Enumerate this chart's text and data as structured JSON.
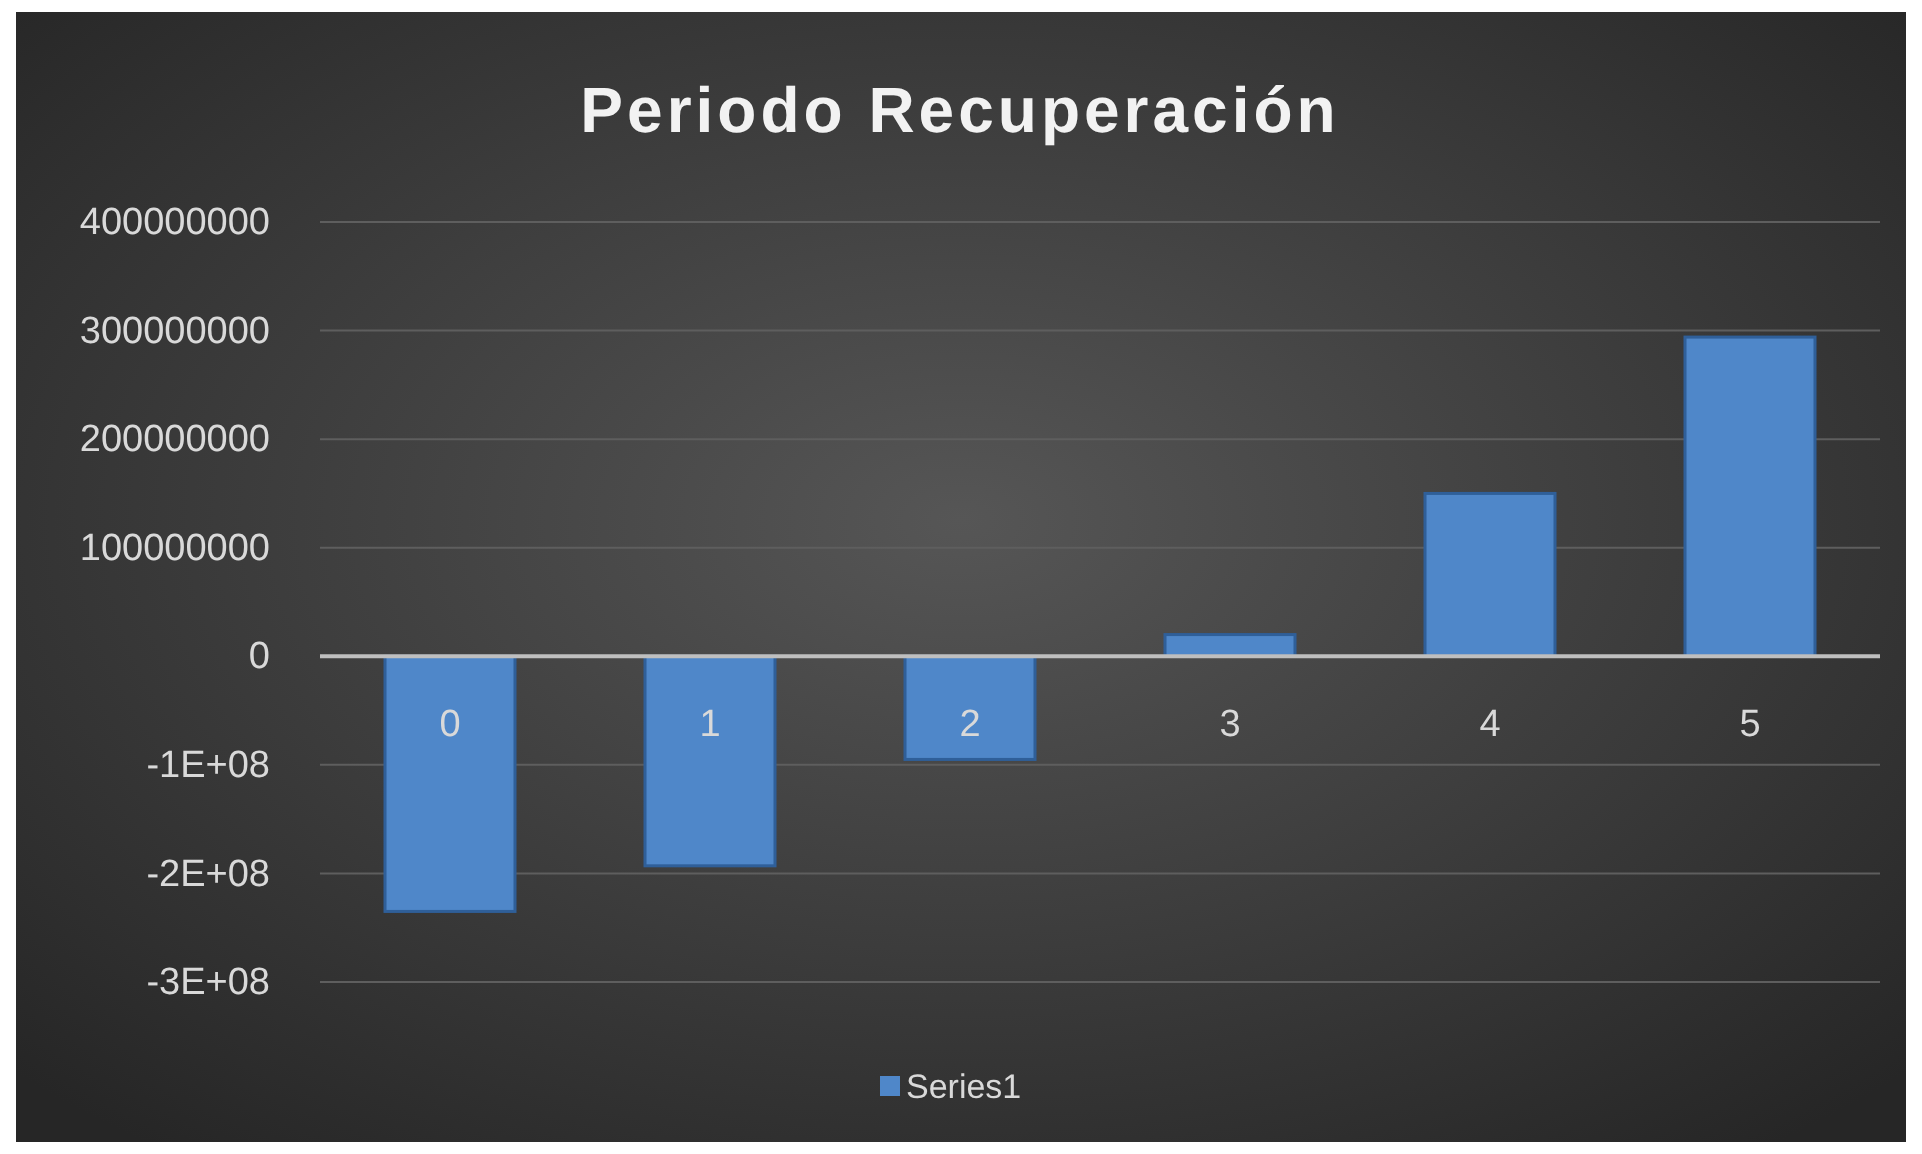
{
  "chart_data": {
    "type": "bar",
    "title": "Periodo Recuperación",
    "categories": [
      "0",
      "1",
      "2",
      "3",
      "4",
      "5"
    ],
    "series": [
      {
        "name": "Series1",
        "color": "#4f87c9",
        "values": [
          -235000000,
          -193000000,
          -95000000,
          20000000,
          150000000,
          294000000
        ]
      }
    ],
    "ylim": [
      -300000000,
      400000000
    ],
    "yticks": [
      {
        "value": -300000000,
        "label": "-3E+08"
      },
      {
        "value": -200000000,
        "label": "-2E+08"
      },
      {
        "value": -100000000,
        "label": "-1E+08"
      },
      0,
      100000000,
      200000000,
      300000000,
      400000000
    ],
    "grid": "y",
    "legend": "bottom"
  }
}
